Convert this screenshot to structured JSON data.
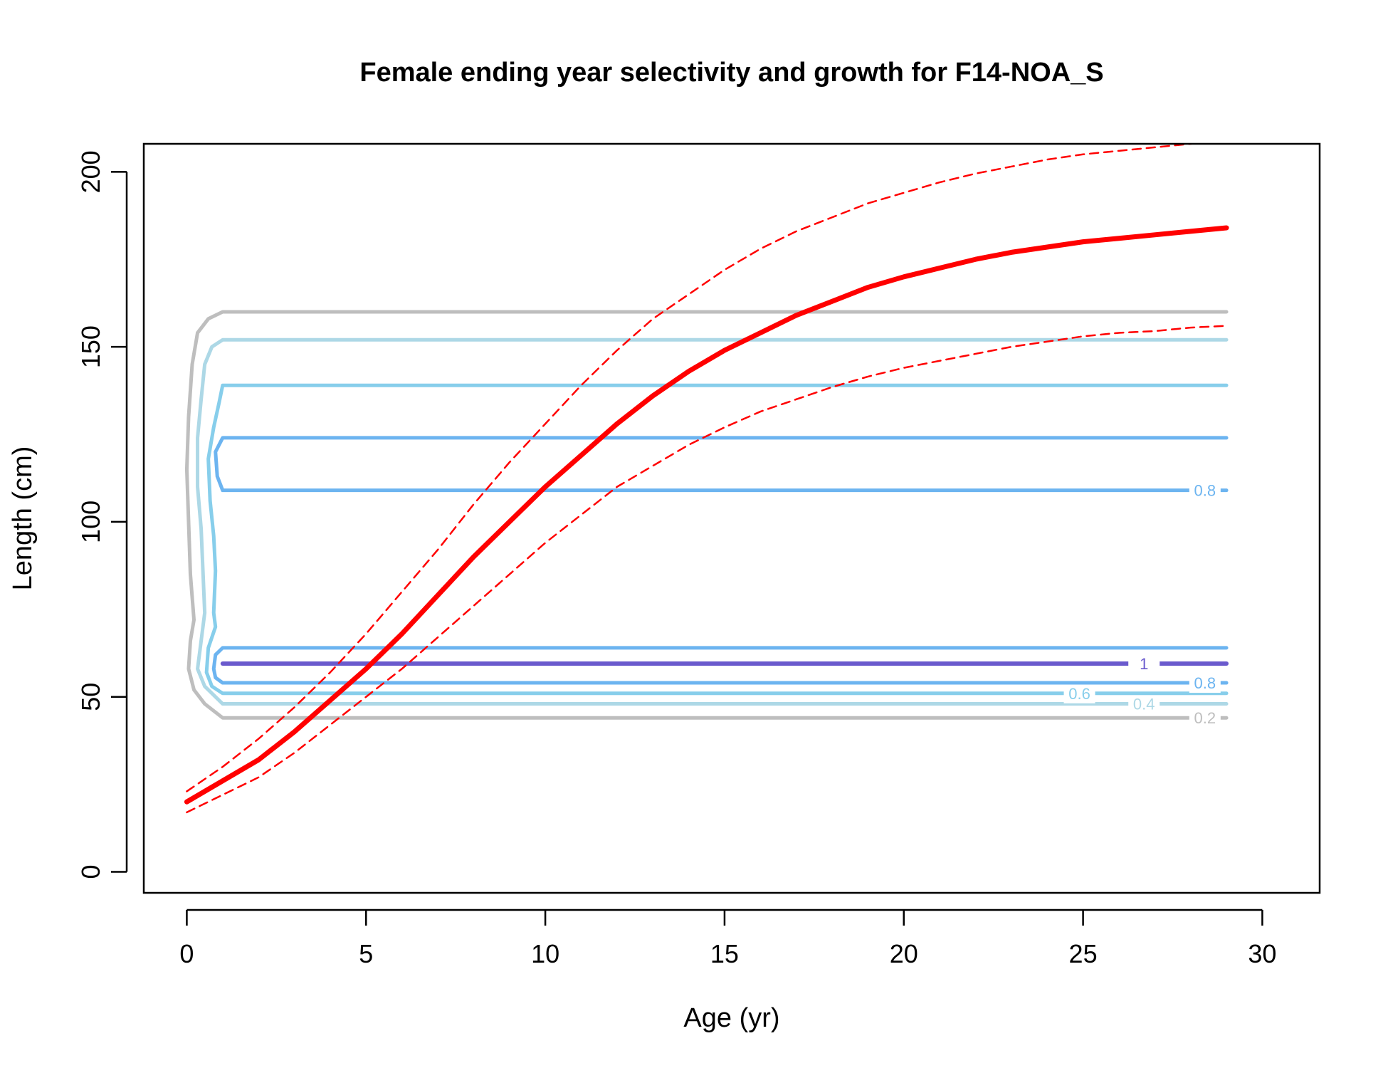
{
  "chart_data": {
    "type": "line",
    "title": "Female ending year selectivity and growth for F14-NOA_S",
    "xlabel": "Age (yr)",
    "ylabel": "Length (cm)",
    "xlim": [
      -1.2,
      31.6
    ],
    "ylim": [
      -6,
      208
    ],
    "x_ticks": [
      0,
      5,
      10,
      15,
      20,
      25,
      30
    ],
    "y_ticks": [
      0,
      50,
      100,
      150,
      200
    ],
    "grid": false,
    "legend": "none",
    "series": [
      {
        "role": "mean length at age",
        "color": "#ff0000",
        "style": "solid",
        "x": [
          0,
          1,
          2,
          3,
          4,
          5,
          6,
          7,
          8,
          9,
          10,
          11,
          12,
          13,
          14,
          15,
          16,
          17,
          18,
          19,
          20,
          21,
          22,
          23,
          24,
          25,
          26,
          27,
          28,
          29
        ],
        "y": [
          20,
          26,
          32,
          40,
          49,
          58,
          68,
          79,
          90,
          100,
          110,
          119,
          128,
          136,
          143,
          149,
          154,
          159,
          163,
          167,
          170,
          172.5,
          175,
          177,
          178.5,
          180,
          181,
          182,
          183,
          184
        ]
      },
      {
        "role": "upper interval",
        "color": "#ff0000",
        "style": "dashed",
        "x": [
          0,
          1,
          2,
          3,
          4,
          5,
          6,
          7,
          8,
          9,
          10,
          11,
          12,
          13,
          14,
          15,
          16,
          17,
          18,
          19,
          20,
          21,
          22,
          23,
          24,
          25,
          26,
          27,
          28,
          29
        ],
        "y": [
          23,
          30,
          38,
          47,
          57,
          68,
          80,
          92,
          105,
          117,
          128,
          139,
          149,
          158,
          165,
          172,
          178,
          183,
          187,
          191,
          194,
          197,
          199.5,
          201.5,
          203.5,
          205,
          206,
          207,
          208,
          209
        ]
      },
      {
        "role": "lower interval",
        "color": "#ff0000",
        "style": "dashed",
        "x": [
          0,
          1,
          2,
          3,
          4,
          5,
          6,
          7,
          8,
          9,
          10,
          11,
          12,
          13,
          14,
          15,
          16,
          17,
          18,
          19,
          20,
          21,
          22,
          23,
          24,
          25,
          26,
          27,
          28,
          29
        ],
        "y": [
          17,
          22,
          27,
          34,
          42,
          50,
          58,
          67,
          76,
          85,
          94,
          102,
          110,
          116,
          122,
          127,
          131.5,
          135,
          138.5,
          141.5,
          144,
          146,
          148,
          150,
          151.5,
          153,
          154,
          154.5,
          155.5,
          156
        ]
      }
    ],
    "contours": [
      {
        "level": 0.2,
        "color": "#bebebe",
        "upper": 160,
        "lower": 44,
        "label": "0.2",
        "label_x": 28.4,
        "label_y": 44,
        "left_edge": [
          [
            1,
            160
          ],
          [
            0.6,
            158
          ],
          [
            0.3,
            154
          ],
          [
            0.15,
            145
          ],
          [
            0.05,
            130
          ],
          [
            0,
            115
          ],
          [
            0.05,
            100
          ],
          [
            0.1,
            85
          ],
          [
            0.2,
            72
          ],
          [
            0.1,
            66
          ],
          [
            0.05,
            58
          ],
          [
            0.2,
            52
          ],
          [
            0.5,
            48
          ],
          [
            1,
            44
          ]
        ]
      },
      {
        "level": 0.4,
        "color": "#add8e6",
        "upper": 152,
        "lower": 48,
        "label": "0.4",
        "label_x": 26.7,
        "label_y": 48,
        "left_edge": [
          [
            1,
            152
          ],
          [
            0.7,
            150
          ],
          [
            0.5,
            145
          ],
          [
            0.4,
            135
          ],
          [
            0.3,
            124
          ],
          [
            0.3,
            110
          ],
          [
            0.4,
            98
          ],
          [
            0.45,
            86
          ],
          [
            0.5,
            74
          ],
          [
            0.4,
            66
          ],
          [
            0.3,
            58
          ],
          [
            0.5,
            53
          ],
          [
            1,
            48
          ]
        ]
      },
      {
        "level": 0.6,
        "color": "#87ceeb",
        "upper": 139,
        "lower": 51,
        "label": "0.6",
        "label_x": 24.9,
        "label_y": 51,
        "left_edge": [
          [
            1,
            139
          ],
          [
            0.9,
            134
          ],
          [
            0.75,
            127
          ],
          [
            0.6,
            118
          ],
          [
            0.65,
            106
          ],
          [
            0.75,
            96
          ],
          [
            0.8,
            86
          ],
          [
            0.75,
            74
          ],
          [
            0.8,
            70
          ],
          [
            0.6,
            64
          ],
          [
            0.55,
            57
          ],
          [
            0.7,
            53
          ],
          [
            1,
            51
          ]
        ]
      },
      {
        "level": 0.8,
        "color": "#6cb4f0",
        "upper": 124,
        "lower": 109,
        "label": "0.8",
        "label_x": 28.4,
        "label_y": 109,
        "left_edge": [
          [
            1,
            124
          ],
          [
            0.8,
            120
          ],
          [
            0.85,
            113
          ],
          [
            1,
            109
          ]
        ]
      },
      {
        "level": 0.8,
        "color": "#6cb4f0",
        "upper": 64,
        "lower": 54,
        "label": "0.8",
        "label_x": 28.4,
        "label_y": 54,
        "left_edge": [
          [
            1,
            64
          ],
          [
            0.8,
            62
          ],
          [
            0.75,
            58
          ],
          [
            0.8,
            55.5
          ],
          [
            1,
            54
          ]
        ]
      },
      {
        "level": 1,
        "color": "#6a5acd",
        "upper": 59.5,
        "lower": 59.5,
        "label": "1",
        "label_x": 26.7,
        "label_y": 59.5,
        "left_edge": []
      }
    ]
  }
}
